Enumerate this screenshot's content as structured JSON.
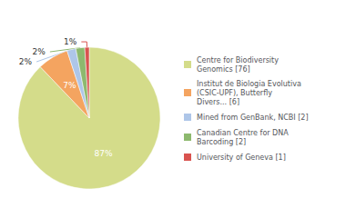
{
  "chart_data": {
    "type": "pie",
    "categories": [
      "Centre for Biodiversity\nGenomics [76]",
      "Institut de Biologia Evolutiva\n(CSIC-UPF), Butterfly\nDivers... [6]",
      "Mined from GenBank, NCBI [2]",
      "Canadian Centre for DNA\nBarcoding [2]",
      "University of Geneva [1]"
    ],
    "values": [
      87,
      7,
      2,
      2,
      1
    ],
    "value_labels": [
      "87%",
      "7%",
      "2%",
      "2%",
      "1%"
    ],
    "colors": [
      "#d4dc8a",
      "#f4a460",
      "#aec6e8",
      "#8db96e",
      "#d9534f"
    ],
    "data_labels": true,
    "legend": "right"
  }
}
